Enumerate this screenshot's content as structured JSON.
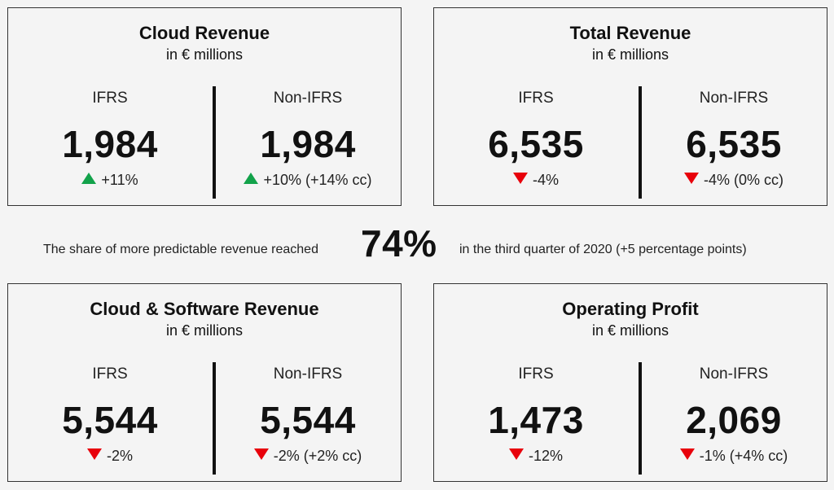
{
  "cards": {
    "cloud_revenue": {
      "title": "Cloud Revenue",
      "subtitle": "in € millions",
      "ifrs_label": "IFRS",
      "ifrs_value": "1,984",
      "ifrs_change": "+11%",
      "ifrs_trend": "up",
      "nonifrs_label": "Non-IFRS",
      "nonifrs_value": "1,984",
      "nonifrs_change": "+10% (+14% cc)",
      "nonifrs_trend": "up"
    },
    "total_revenue": {
      "title": "Total Revenue",
      "subtitle": "in € millions",
      "ifrs_label": "IFRS",
      "ifrs_value": "6,535",
      "ifrs_change": "-4%",
      "ifrs_trend": "down",
      "nonifrs_label": "Non-IFRS",
      "nonifrs_value": "6,535",
      "nonifrs_change": "-4% (0% cc)",
      "nonifrs_trend": "down"
    },
    "cloud_software_revenue": {
      "title": "Cloud & Software Revenue",
      "subtitle": "in € millions",
      "ifrs_label": "IFRS",
      "ifrs_value": "5,544",
      "ifrs_change": "-2%",
      "ifrs_trend": "down",
      "nonifrs_label": "Non-IFRS",
      "nonifrs_value": "5,544",
      "nonifrs_change": "-2% (+2% cc)",
      "nonifrs_trend": "down"
    },
    "operating_profit": {
      "title": "Operating Profit",
      "subtitle": "in € millions",
      "ifrs_label": "IFRS",
      "ifrs_value": "1,473",
      "ifrs_change": "-12%",
      "ifrs_trend": "down",
      "nonifrs_label": "Non-IFRS",
      "nonifrs_value": "2,069",
      "nonifrs_change": "-1% (+4% cc)",
      "nonifrs_trend": "down"
    }
  },
  "highlight": {
    "prefix": "The share of more predictable revenue reached",
    "value": "74%",
    "suffix": "in the third quarter of 2020 (+5 percentage points)"
  },
  "colors": {
    "up": "#12a24a",
    "down": "#e8000b",
    "text": "#111111",
    "background": "#f4f4f4"
  },
  "icons": {
    "up": "triangle-up-icon",
    "down": "triangle-down-icon"
  }
}
